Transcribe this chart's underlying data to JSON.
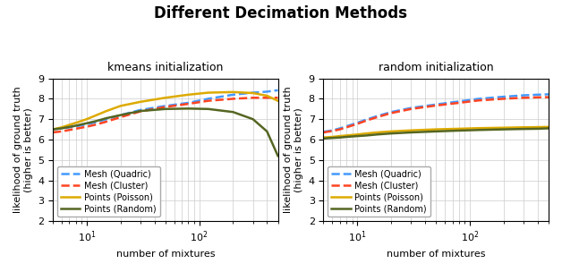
{
  "title": "Different Decimation Methods",
  "subplot_titles": [
    "kmeans initialization",
    "random initialization"
  ],
  "xlabel": "number of mixtures",
  "ylabel": "likelihood of ground truth\n(higher is better)",
  "ylim": [
    2,
    9
  ],
  "xlim": [
    5,
    500
  ],
  "yticks": [
    2,
    3,
    4,
    5,
    6,
    7,
    8,
    9
  ],
  "legend_labels": [
    "Mesh (Quadric)",
    "Mesh (Cluster)",
    "Points (Poisson)",
    "Points (Random)"
  ],
  "colors": {
    "mesh_quadric": "#4499ff",
    "mesh_cluster": "#ff4422",
    "points_poisson": "#ddaa00",
    "points_random": "#556622"
  },
  "kmeans": {
    "x": [
      5,
      6,
      7,
      8,
      10,
      12,
      15,
      20,
      30,
      50,
      80,
      120,
      200,
      300,
      400,
      500
    ],
    "mesh_quadric": [
      6.5,
      6.55,
      6.6,
      6.65,
      6.75,
      6.85,
      7.0,
      7.2,
      7.45,
      7.65,
      7.8,
      8.0,
      8.2,
      8.3,
      8.35,
      8.42
    ],
    "mesh_cluster": [
      6.35,
      6.4,
      6.47,
      6.53,
      6.63,
      6.73,
      6.88,
      7.1,
      7.38,
      7.6,
      7.75,
      7.9,
      8.0,
      8.05,
      8.05,
      8.05
    ],
    "points_poisson": [
      6.5,
      6.6,
      6.72,
      6.82,
      7.0,
      7.18,
      7.4,
      7.65,
      7.85,
      8.05,
      8.2,
      8.3,
      8.33,
      8.28,
      8.15,
      7.9
    ],
    "points_random": [
      6.5,
      6.55,
      6.62,
      6.68,
      6.8,
      6.9,
      7.05,
      7.2,
      7.4,
      7.5,
      7.52,
      7.5,
      7.35,
      7.0,
      6.4,
      5.2
    ]
  },
  "random": {
    "x": [
      5,
      6,
      7,
      8,
      10,
      12,
      15,
      20,
      30,
      50,
      80,
      120,
      200,
      300,
      400,
      500
    ],
    "mesh_quadric": [
      6.38,
      6.45,
      6.55,
      6.65,
      6.82,
      6.98,
      7.15,
      7.35,
      7.55,
      7.72,
      7.87,
      8.0,
      8.1,
      8.17,
      8.2,
      8.22
    ],
    "mesh_cluster": [
      6.35,
      6.42,
      6.5,
      6.6,
      6.77,
      6.93,
      7.1,
      7.3,
      7.5,
      7.67,
      7.8,
      7.92,
      8.0,
      8.05,
      8.07,
      8.08
    ],
    "points_poisson": [
      6.1,
      6.13,
      6.17,
      6.2,
      6.25,
      6.3,
      6.35,
      6.4,
      6.45,
      6.5,
      6.53,
      6.56,
      6.58,
      6.6,
      6.61,
      6.62
    ],
    "points_random": [
      6.05,
      6.08,
      6.1,
      6.13,
      6.17,
      6.2,
      6.25,
      6.3,
      6.35,
      6.4,
      6.44,
      6.47,
      6.5,
      6.52,
      6.53,
      6.55
    ]
  },
  "title_fontsize": 12,
  "subplot_title_fontsize": 9,
  "axis_label_fontsize": 8,
  "tick_fontsize": 8,
  "legend_fontsize": 7,
  "line_width": 1.8
}
